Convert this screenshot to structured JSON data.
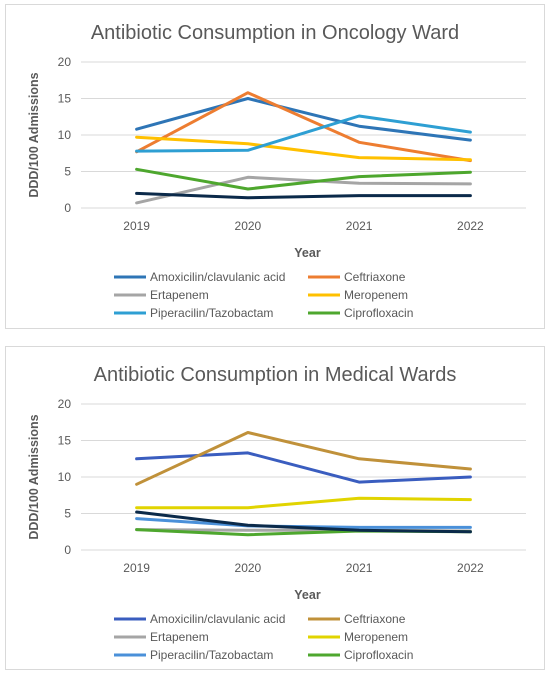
{
  "chart_data": [
    {
      "type": "line",
      "title": "Antibiotic Consumption in Oncology Ward",
      "xlabel": "Year",
      "ylabel": "DDD/100 Admissions",
      "x": [
        "2019",
        "2020",
        "2021",
        "2022"
      ],
      "ylim": [
        0,
        20
      ],
      "yticks": [
        0,
        5,
        10,
        15,
        20
      ],
      "grid": true,
      "legend_position": "bottom",
      "series": [
        {
          "name": "Amoxicilin/clavulanic acid",
          "color": "#2e75b6",
          "values": [
            10.8,
            15.0,
            11.2,
            9.3
          ]
        },
        {
          "name": "Ceftriaxone",
          "color": "#ed7d31",
          "values": [
            7.7,
            15.8,
            9.0,
            6.5
          ]
        },
        {
          "name": "Ertapenem",
          "color": "#a5a5a5",
          "values": [
            0.7,
            4.2,
            3.4,
            3.3
          ]
        },
        {
          "name": "Meropenem",
          "color": "#ffc000",
          "values": [
            9.7,
            8.8,
            6.9,
            6.6
          ]
        },
        {
          "name": "Piperacilin/Tazobactam",
          "color": "#2e9fd3",
          "values": [
            7.8,
            7.9,
            12.6,
            10.4
          ]
        },
        {
          "name": "Ciprofloxacin",
          "color": "#4ea72e",
          "values": [
            5.3,
            2.6,
            4.3,
            4.9
          ]
        },
        {
          "name": "",
          "color": "#0b2a4a",
          "values": [
            2.0,
            1.4,
            1.7,
            1.7
          ]
        }
      ]
    },
    {
      "type": "line",
      "title": "Antibiotic Consumption in Medical Wards",
      "xlabel": "Year",
      "ylabel": "DDD/100 Admissions",
      "x": [
        "2019",
        "2020",
        "2021",
        "2022"
      ],
      "ylim": [
        0,
        20
      ],
      "yticks": [
        0,
        5,
        10,
        15,
        20
      ],
      "grid": true,
      "legend_position": "bottom",
      "series": [
        {
          "name": "Amoxicilin/clavulanic acid",
          "color": "#3a5dbf",
          "values": [
            12.5,
            13.3,
            9.3,
            10.0
          ]
        },
        {
          "name": "Ceftriaxone",
          "color": "#c0913a",
          "values": [
            9.0,
            16.1,
            12.5,
            11.1
          ]
        },
        {
          "name": "Ertapenem",
          "color": "#a5a5a5",
          "values": [
            2.8,
            2.7,
            2.7,
            2.6
          ]
        },
        {
          "name": "Meropenem",
          "color": "#e1d400",
          "values": [
            5.8,
            5.8,
            7.1,
            6.9
          ]
        },
        {
          "name": "Piperacilin/Tazobactam",
          "color": "#4a90d9",
          "values": [
            4.3,
            3.3,
            3.1,
            3.1
          ]
        },
        {
          "name": "Ciprofloxacin",
          "color": "#4ea72e",
          "values": [
            2.8,
            2.1,
            2.6,
            2.5
          ]
        },
        {
          "name": "",
          "color": "#0b2a4a",
          "values": [
            5.2,
            3.4,
            2.7,
            2.5
          ]
        }
      ]
    }
  ]
}
